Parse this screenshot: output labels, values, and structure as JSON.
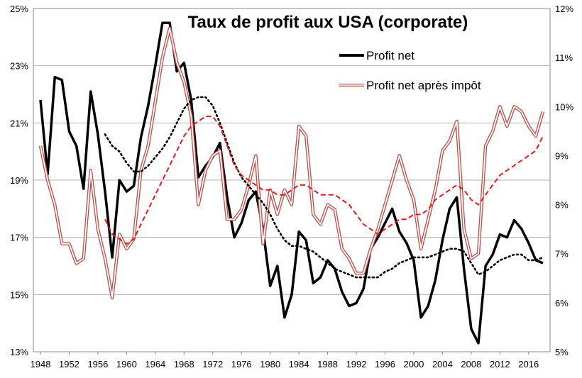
{
  "chart_data": {
    "type": "line",
    "title": "Taux de profit aux USA (corporate)",
    "xlim": [
      1948,
      2018
    ],
    "x_ticks": [
      "1948",
      "1952",
      "1956",
      "1960",
      "1964",
      "1968",
      "1972",
      "1976",
      "1980",
      "1984",
      "1988",
      "1992",
      "1996",
      "2000",
      "2004",
      "2008",
      "2012",
      "2016"
    ],
    "y_left": {
      "ylim": [
        13,
        25
      ],
      "ticks": [
        "13%",
        "15%",
        "17%",
        "19%",
        "21%",
        "23%",
        "25%"
      ]
    },
    "y_right": {
      "ylim": [
        5,
        12
      ],
      "ticks": [
        "5%",
        "6%",
        "7%",
        "8%",
        "9%",
        "10%",
        "11%",
        "12%"
      ]
    },
    "grid": true,
    "legend_position": "top-right",
    "colors": {
      "profit_net": "#000000",
      "after_tax": "#c0504d",
      "after_tax_fill": "#ffffff",
      "moving_avg_red": "#e41a1c",
      "grid": "#b0b0b0"
    },
    "series": [
      {
        "name": "Profit net",
        "axis": "left",
        "style": "solid-black-thick",
        "x": [
          1948,
          1949,
          1950,
          1951,
          1952,
          1953,
          1954,
          1955,
          1956,
          1957,
          1958,
          1959,
          1960,
          1961,
          1962,
          1963,
          1964,
          1965,
          1966,
          1967,
          1968,
          1969,
          1970,
          1971,
          1972,
          1973,
          1974,
          1975,
          1976,
          1977,
          1978,
          1979,
          1980,
          1981,
          1982,
          1983,
          1984,
          1985,
          1986,
          1987,
          1988,
          1989,
          1990,
          1991,
          1992,
          1993,
          1994,
          1995,
          1996,
          1997,
          1998,
          1999,
          2000,
          2001,
          2002,
          2003,
          2004,
          2005,
          2006,
          2007,
          2008,
          2009,
          2010,
          2011,
          2012,
          2013,
          2014,
          2015,
          2016,
          2017,
          2018
        ],
        "values": [
          21.8,
          19.2,
          22.6,
          22.5,
          20.7,
          20.2,
          18.7,
          22.1,
          20.6,
          18.6,
          16.3,
          19.0,
          18.6,
          18.8,
          20.5,
          21.6,
          23.0,
          24.5,
          24.5,
          22.8,
          23.1,
          21.8,
          19.1,
          19.5,
          19.8,
          20.3,
          18.4,
          17.0,
          17.5,
          18.3,
          18.6,
          17.3,
          15.3,
          16.0,
          14.2,
          15.0,
          17.2,
          16.9,
          15.4,
          15.6,
          16.2,
          15.9,
          15.1,
          14.6,
          14.7,
          15.2,
          16.6,
          17.0,
          17.5,
          18.0,
          17.2,
          16.8,
          16.2,
          14.2,
          14.6,
          15.5,
          16.9,
          18.0,
          18.4,
          15.9,
          13.8,
          13.3,
          16.0,
          16.4,
          17.1,
          17.0,
          17.6,
          17.3,
          16.8,
          16.2,
          16.1
        ]
      },
      {
        "name": "Profit net après impôt",
        "axis": "right",
        "style": "double-red-outline",
        "x": [
          1948,
          1949,
          1950,
          1951,
          1952,
          1953,
          1954,
          1955,
          1956,
          1957,
          1958,
          1959,
          1960,
          1961,
          1962,
          1963,
          1964,
          1965,
          1966,
          1967,
          1968,
          1969,
          1970,
          1971,
          1972,
          1973,
          1974,
          1975,
          1976,
          1977,
          1978,
          1979,
          1980,
          1981,
          1982,
          1983,
          1984,
          1985,
          1986,
          1987,
          1988,
          1989,
          1990,
          1991,
          1992,
          1993,
          1994,
          1995,
          1996,
          1997,
          1998,
          1999,
          2000,
          2001,
          2002,
          2003,
          2004,
          2005,
          2006,
          2007,
          2008,
          2009,
          2010,
          2011,
          2012,
          2013,
          2014,
          2015,
          2016,
          2017,
          2018
        ],
        "values": [
          9.2,
          8.5,
          8.0,
          7.2,
          7.2,
          6.8,
          6.9,
          8.7,
          7.5,
          6.9,
          6.1,
          7.4,
          7.1,
          7.3,
          8.7,
          9.2,
          10.1,
          11.0,
          11.6,
          10.9,
          10.5,
          9.8,
          8.0,
          8.7,
          9.0,
          9.1,
          7.7,
          7.7,
          7.9,
          8.4,
          9.0,
          7.2,
          8.3,
          7.8,
          8.3,
          8.0,
          9.6,
          9.4,
          7.8,
          7.6,
          8.0,
          7.9,
          7.1,
          6.9,
          6.6,
          6.6,
          7.1,
          7.5,
          8.0,
          8.5,
          9.0,
          8.5,
          8.1,
          7.1,
          7.7,
          8.3,
          9.1,
          9.3,
          9.7,
          7.5,
          6.9,
          7.0,
          9.2,
          9.5,
          10.0,
          9.6,
          10.0,
          9.9,
          9.6,
          9.4,
          9.9
        ]
      },
      {
        "axis": "left",
        "style": "dotted-black",
        "x": [
          1957,
          1958,
          1959,
          1960,
          1961,
          1962,
          1963,
          1964,
          1965,
          1966,
          1967,
          1968,
          1969,
          1970,
          1971,
          1972,
          1973,
          1974,
          1975,
          1976,
          1977,
          1978,
          1979,
          1980,
          1981,
          1982,
          1983,
          1984,
          1985,
          1986,
          1987,
          1988,
          1989,
          1990,
          1991,
          1992,
          1993,
          1994,
          1995,
          1996,
          1997,
          1998,
          1999,
          2000,
          2001,
          2002,
          2003,
          2004,
          2005,
          2006,
          2007,
          2008,
          2009,
          2010,
          2011,
          2012,
          2013,
          2014,
          2015,
          2016,
          2017,
          2018
        ],
        "values": [
          20.6,
          20.2,
          20.0,
          19.6,
          19.3,
          19.3,
          19.5,
          19.8,
          20.1,
          20.5,
          21.0,
          21.5,
          21.8,
          21.9,
          21.9,
          21.6,
          21.0,
          20.3,
          19.6,
          19.1,
          18.8,
          18.5,
          18.2,
          17.8,
          17.3,
          16.9,
          16.7,
          16.7,
          16.6,
          16.5,
          16.3,
          16.1,
          15.9,
          15.8,
          15.7,
          15.6,
          15.6,
          15.6,
          15.6,
          15.8,
          15.9,
          16.1,
          16.2,
          16.3,
          16.3,
          16.3,
          16.4,
          16.5,
          16.6,
          16.6,
          16.5,
          16.1,
          15.7,
          15.8,
          16.0,
          16.2,
          16.3,
          16.4,
          16.4,
          16.2,
          16.2,
          16.3
        ]
      },
      {
        "axis": "right",
        "style": "dashed-red",
        "x": [
          1957,
          1958,
          1959,
          1960,
          1961,
          1962,
          1963,
          1964,
          1965,
          1966,
          1967,
          1968,
          1969,
          1970,
          1971,
          1972,
          1973,
          1974,
          1975,
          1976,
          1977,
          1978,
          1979,
          1980,
          1981,
          1982,
          1983,
          1984,
          1985,
          1986,
          1987,
          1988,
          1989,
          1990,
          1991,
          1992,
          1993,
          1994,
          1995,
          1996,
          1997,
          1998,
          1999,
          2000,
          2001,
          2002,
          2003,
          2004,
          2005,
          2006,
          2007,
          2008,
          2009,
          2010,
          2011,
          2012,
          2013,
          2014,
          2015,
          2016,
          2017,
          2018
        ],
        "values": [
          7.7,
          7.4,
          7.3,
          7.2,
          7.3,
          7.6,
          7.9,
          8.2,
          8.5,
          8.8,
          9.1,
          9.4,
          9.6,
          9.7,
          9.8,
          9.8,
          9.6,
          9.2,
          8.8,
          8.6,
          8.5,
          8.4,
          8.3,
          8.3,
          8.2,
          8.2,
          8.3,
          8.4,
          8.4,
          8.3,
          8.2,
          8.2,
          8.2,
          8.1,
          8.0,
          7.8,
          7.6,
          7.5,
          7.4,
          7.5,
          7.6,
          7.7,
          7.7,
          7.8,
          7.8,
          7.9,
          8.1,
          8.2,
          8.3,
          8.4,
          8.3,
          8.1,
          8.0,
          8.2,
          8.4,
          8.6,
          8.7,
          8.8,
          8.9,
          9.0,
          9.1,
          9.4
        ]
      }
    ]
  }
}
